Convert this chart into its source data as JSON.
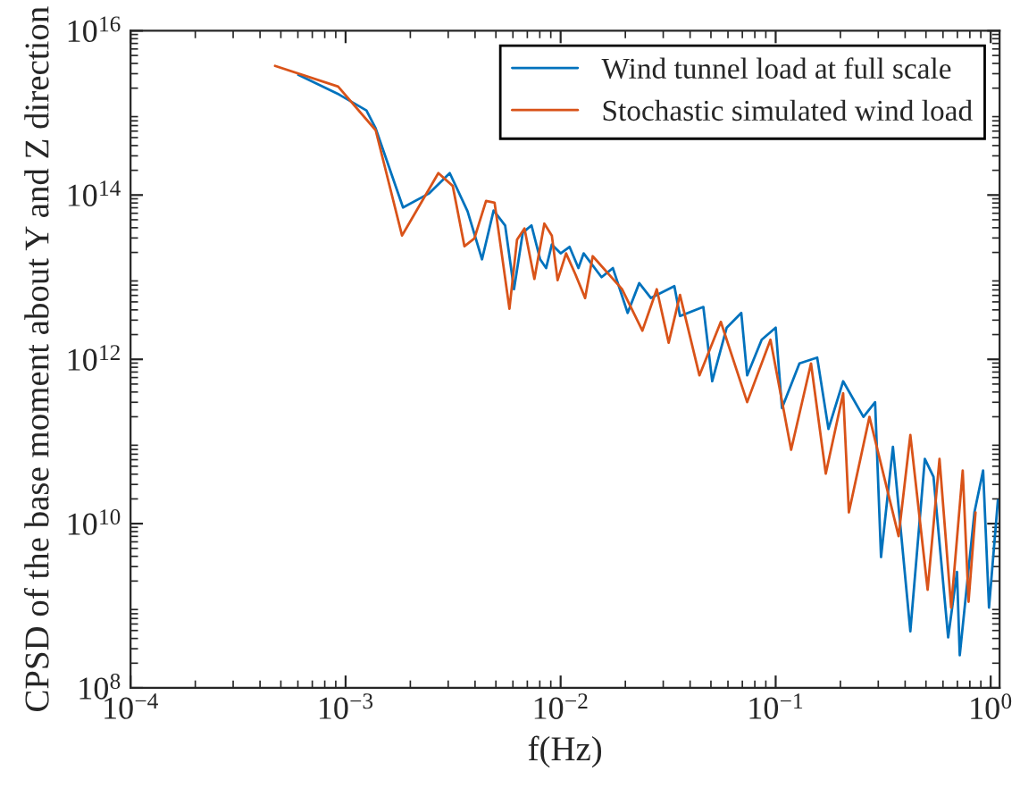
{
  "chart_data": {
    "type": "line",
    "xlabel": "f(Hz)",
    "ylabel": "CPSD of the base moment about Y and Z direction",
    "log": "xy",
    "grid": false,
    "legend": "top right",
    "marker": "none",
    "line_style": "solid",
    "xlim": [
      0.0001,
      1.1
    ],
    "ylim": [
      100000000.0,
      1e+16
    ],
    "xticks": [
      {
        "value": 0.0001,
        "label": "10$^{−4}$"
      },
      {
        "value": 0.001,
        "label": "10$^{−3}$"
      },
      {
        "value": 0.01,
        "label": "10$^{−2}$"
      },
      {
        "value": 0.1,
        "label": "10$^{−1}$"
      },
      {
        "value": 1,
        "label": "10$^{0}$"
      }
    ],
    "yticks": [
      {
        "value": 100000000.0,
        "label": "10$^{8}$"
      },
      {
        "value": 10000000000.0,
        "label": "10$^{10}$"
      },
      {
        "value": 1000000000000.0,
        "label": "10$^{12}$"
      },
      {
        "value": 100000000000000.0,
        "label": "10$^{14}$"
      },
      {
        "value": 1e+16,
        "label": "10$^{16}$"
      }
    ],
    "series": [
      {
        "name": "Wind tunnel load at full scale",
        "color": "#0072bd",
        "x": [
          0.000603,
          0.000933,
          0.00125,
          0.00138,
          0.00185,
          0.00245,
          0.00305,
          0.00369,
          0.00431,
          0.00488,
          0.00552,
          0.00607,
          0.00667,
          0.00732,
          0.00803,
          0.00856,
          0.0091,
          0.01,
          0.011,
          0.0121,
          0.0128,
          0.0155,
          0.0175,
          0.0205,
          0.0232,
          0.0263,
          0.0338,
          0.0359,
          0.0461,
          0.0507,
          0.0592,
          0.0692,
          0.0737,
          0.0861,
          0.1,
          0.107,
          0.129,
          0.156,
          0.176,
          0.206,
          0.256,
          0.29,
          0.309,
          0.351,
          0.423,
          0.494,
          0.542,
          0.634,
          0.697,
          0.718,
          0.84,
          0.922,
          0.982,
          1.08
        ],
        "values": [
          2900000000000000.0,
          1670000000000000.0,
          1070000000000000.0,
          647000000000000.0,
          70500000000000.0,
          105000000000000.0,
          185000000000000.0,
          63700000000000.0,
          16500000000000.0,
          64700000000000.0,
          42700000000000.0,
          7140000000000.0,
          34900000000000.0,
          42700000000000.0,
          16500000000000.0,
          12900000000000.0,
          25000000000000.0,
          19500000000000.0,
          23400000000000.0,
          12900000000000.0,
          19500000000000.0,
          10000000000000.0,
          12900000000000.0,
          3670000000000.0,
          8470000000000.0,
          5570000000000.0,
          7780000000000.0,
          3370000000000.0,
          4340000000000.0,
          541000000000.0,
          2430000000000.0,
          3670000000000.0,
          637000000000.0,
          1730000000000.0,
          2430000000000.0,
          255000000000.0,
          891000000000.0,
          1050000000000.0,
          142000000000.0,
          541000000000.0,
          199000000000.0,
          301000000000.0,
          3920000000.0,
          86100000000.0,
          489000000.0,
          61500000000.0,
          37300000000.0,
          412000000.0,
          2590000000.0,
          250000000.0,
          13700000000.0,
          44300000000.0,
          951000000.0,
          19200000000.0
        ]
      },
      {
        "name": "Stochastic simulated wind load",
        "color": "#d95319",
        "x": [
          0.00047,
          0.000923,
          0.00138,
          0.00183,
          0.0027,
          0.00315,
          0.00357,
          0.00397,
          0.0045,
          0.00493,
          0.00578,
          0.00627,
          0.00679,
          0.00755,
          0.0084,
          0.0091,
          0.00968,
          0.0106,
          0.0117,
          0.013,
          0.0141,
          0.0193,
          0.024,
          0.028,
          0.0318,
          0.0359,
          0.0442,
          0.0556,
          0.0737,
          0.0946,
          0.118,
          0.146,
          0.171,
          0.206,
          0.219,
          0.273,
          0.373,
          0.423,
          0.509,
          0.578,
          0.655,
          0.741,
          0.789,
          0.85
        ],
        "values": [
          3730000000000000.0,
          2090000000000000.0,
          615000000000000.0,
          32100000000000.0,
          185000000000000.0,
          129000000000000.0,
          23800000000000.0,
          29600000000000.0,
          84700000000000.0,
          80700000000000.0,
          4120000000000.0,
          28600000000000.0,
          39200000000000.0,
          9510000000000.0,
          44900000000000.0,
          32100000000000.0,
          9180000000000.0,
          19500000000000.0,
          10900000000000.0,
          5570000000000.0,
          18000000000000.0,
          7140000000000.0,
          2230000000000.0,
          7140000000000.0,
          1590000000000.0,
          6070000000000.0,
          637000000000.0,
          2860000000000.0,
          301000000000.0,
          1730000000000.0,
          79100000000.0,
          891000000000.0,
          40600000000.0,
          386000000000.0,
          13700000000.0,
          199000000000.0,
          7050000000.0,
          120000000000.0,
          1570000000.0,
          61500000000.0,
          951000000.0,
          44300000000.0,
          1120000000.0,
          13700000000.0
        ]
      }
    ]
  }
}
